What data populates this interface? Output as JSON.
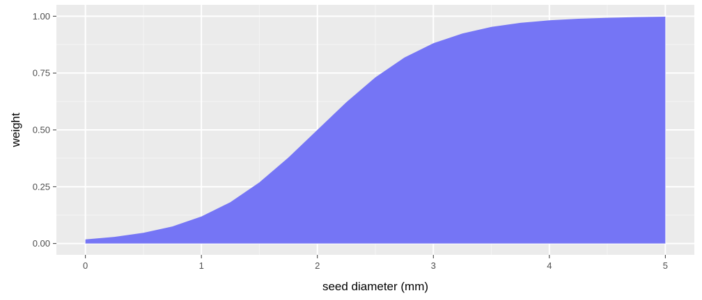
{
  "chart_data": {
    "type": "area",
    "title": "",
    "xlabel": "seed diameter (mm)",
    "ylabel": "weight",
    "xlim": [
      -0.25,
      5.25
    ],
    "ylim": [
      -0.05,
      1.05
    ],
    "x_ticks": [
      0,
      1,
      2,
      3,
      4,
      5
    ],
    "x_tick_labels": [
      "0",
      "1",
      "2",
      "3",
      "4",
      "5"
    ],
    "y_ticks": [
      0,
      0.25,
      0.5,
      0.75,
      1
    ],
    "y_tick_labels": [
      "0.00",
      "0.25",
      "0.50",
      "0.75",
      "1.00"
    ],
    "grid": true,
    "legend": "none",
    "series": [
      {
        "x": [
          0,
          0.25,
          0.5,
          0.75,
          1,
          1.25,
          1.5,
          1.75,
          2,
          2.25,
          2.5,
          2.75,
          3,
          3.25,
          3.5,
          3.75,
          4,
          4.25,
          4.5,
          4.75,
          5
        ],
        "y": [
          0.018,
          0.029,
          0.047,
          0.075,
          0.119,
          0.182,
          0.269,
          0.378,
          0.5,
          0.622,
          0.731,
          0.818,
          0.881,
          0.924,
          0.953,
          0.971,
          0.982,
          0.989,
          0.993,
          0.996,
          0.998
        ]
      }
    ],
    "colors": {
      "fill": "#7575f5",
      "panel": "#ebebeb",
      "grid_major": "#ffffff",
      "grid_minor": "#f5f5f5",
      "tick_mark": "#333333"
    }
  }
}
